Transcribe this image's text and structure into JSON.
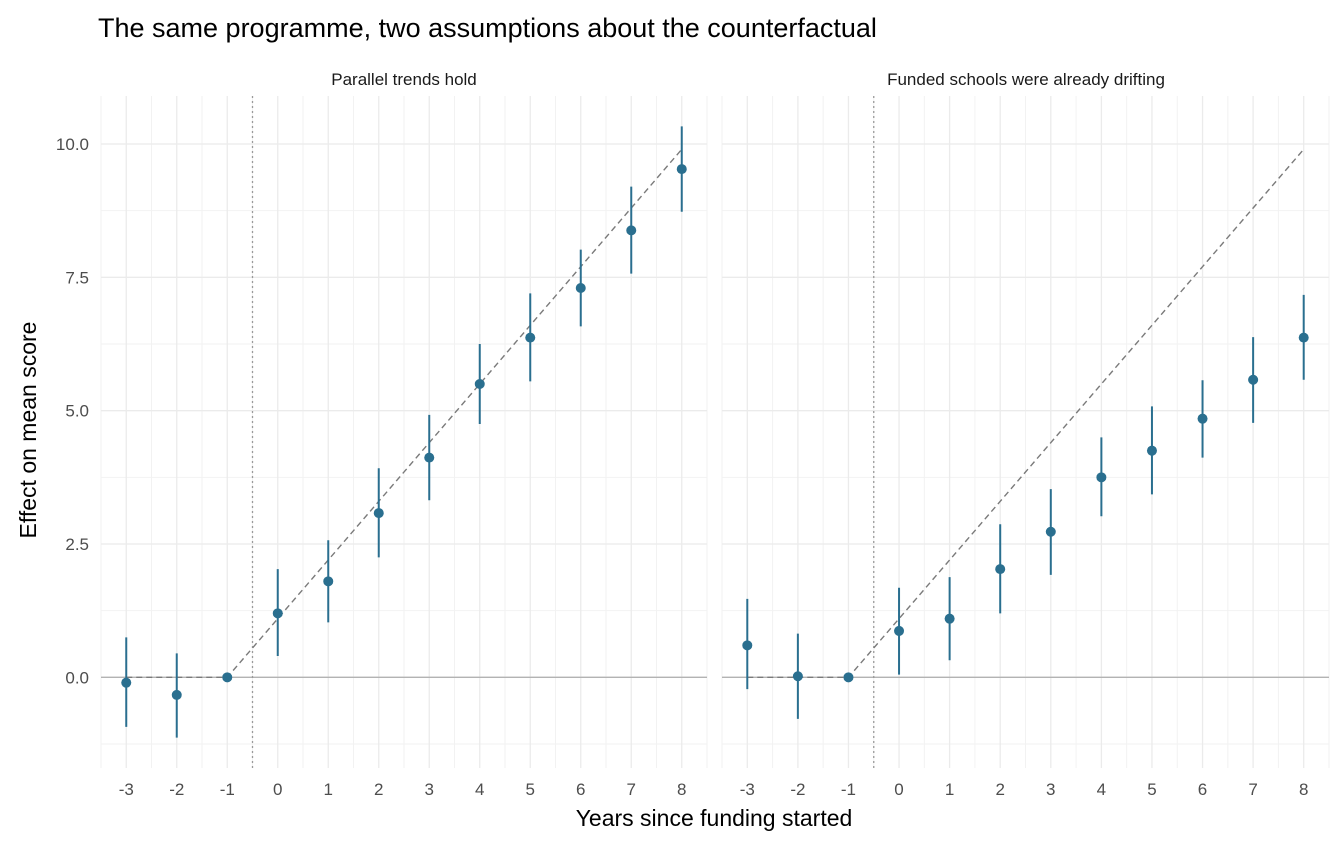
{
  "chart_data": {
    "type": "scatter",
    "title": "The same programme, two assumptions about the counterfactual",
    "xlabel": "Years since funding started",
    "ylabel": "Effect on mean score",
    "xlim": [
      -3.5,
      8.5
    ],
    "ylim": [
      -1.7,
      10.9
    ],
    "x_ticks": [
      "-3",
      "-2",
      "-1",
      "0",
      "1",
      "2",
      "3",
      "4",
      "5",
      "6",
      "7",
      "8"
    ],
    "y_ticks": [
      "0.0",
      "2.5",
      "5.0",
      "7.5",
      "10.0"
    ],
    "y_tick_values": [
      0,
      2.5,
      5.0,
      7.5,
      10.0
    ],
    "grid": true,
    "point_color": "#2a6f8f",
    "reference_line_x": -0.5,
    "reference_line_y": 0,
    "panels": [
      {
        "label": "Parallel trends hold",
        "x": [
          -3,
          -2,
          -1,
          0,
          1,
          2,
          3,
          4,
          5,
          6,
          7,
          8
        ],
        "y": [
          -0.1,
          -0.33,
          0.0,
          1.2,
          1.8,
          3.08,
          4.12,
          5.5,
          6.37,
          7.3,
          8.38,
          9.53
        ],
        "ci_low": [
          -0.93,
          -1.13,
          0.0,
          0.4,
          1.03,
          2.25,
          3.32,
          4.75,
          5.55,
          6.58,
          7.57,
          8.73
        ],
        "ci_high": [
          0.75,
          0.45,
          0.0,
          2.03,
          2.57,
          3.92,
          4.92,
          6.25,
          7.2,
          8.02,
          9.2,
          10.33
        ],
        "true_effect_x": [
          -3,
          -2,
          -1,
          0,
          1,
          2,
          3,
          4,
          5,
          6,
          7,
          8
        ],
        "true_effect_y": [
          0,
          0,
          0,
          1.1,
          2.2,
          3.3,
          4.4,
          5.5,
          6.6,
          7.7,
          8.8,
          9.9
        ]
      },
      {
        "label": "Funded schools were already drifting",
        "x": [
          -3,
          -2,
          -1,
          0,
          1,
          2,
          3,
          4,
          5,
          6,
          7,
          8
        ],
        "y": [
          0.6,
          0.02,
          0.0,
          0.87,
          1.1,
          2.03,
          2.73,
          3.75,
          4.25,
          4.85,
          5.58,
          6.37
        ],
        "ci_low": [
          -0.22,
          -0.78,
          0.0,
          0.05,
          0.32,
          1.2,
          1.92,
          3.02,
          3.43,
          4.12,
          4.77,
          5.58
        ],
        "ci_high": [
          1.47,
          0.82,
          0.0,
          1.68,
          1.88,
          2.87,
          3.53,
          4.5,
          5.08,
          5.57,
          6.38,
          7.17
        ],
        "true_effect_x": [
          -3,
          -2,
          -1,
          0,
          1,
          2,
          3,
          4,
          5,
          6,
          7,
          8
        ],
        "true_effect_y": [
          0,
          0,
          0,
          1.1,
          2.2,
          3.3,
          4.4,
          5.5,
          6.6,
          7.7,
          8.8,
          9.9
        ]
      }
    ]
  }
}
